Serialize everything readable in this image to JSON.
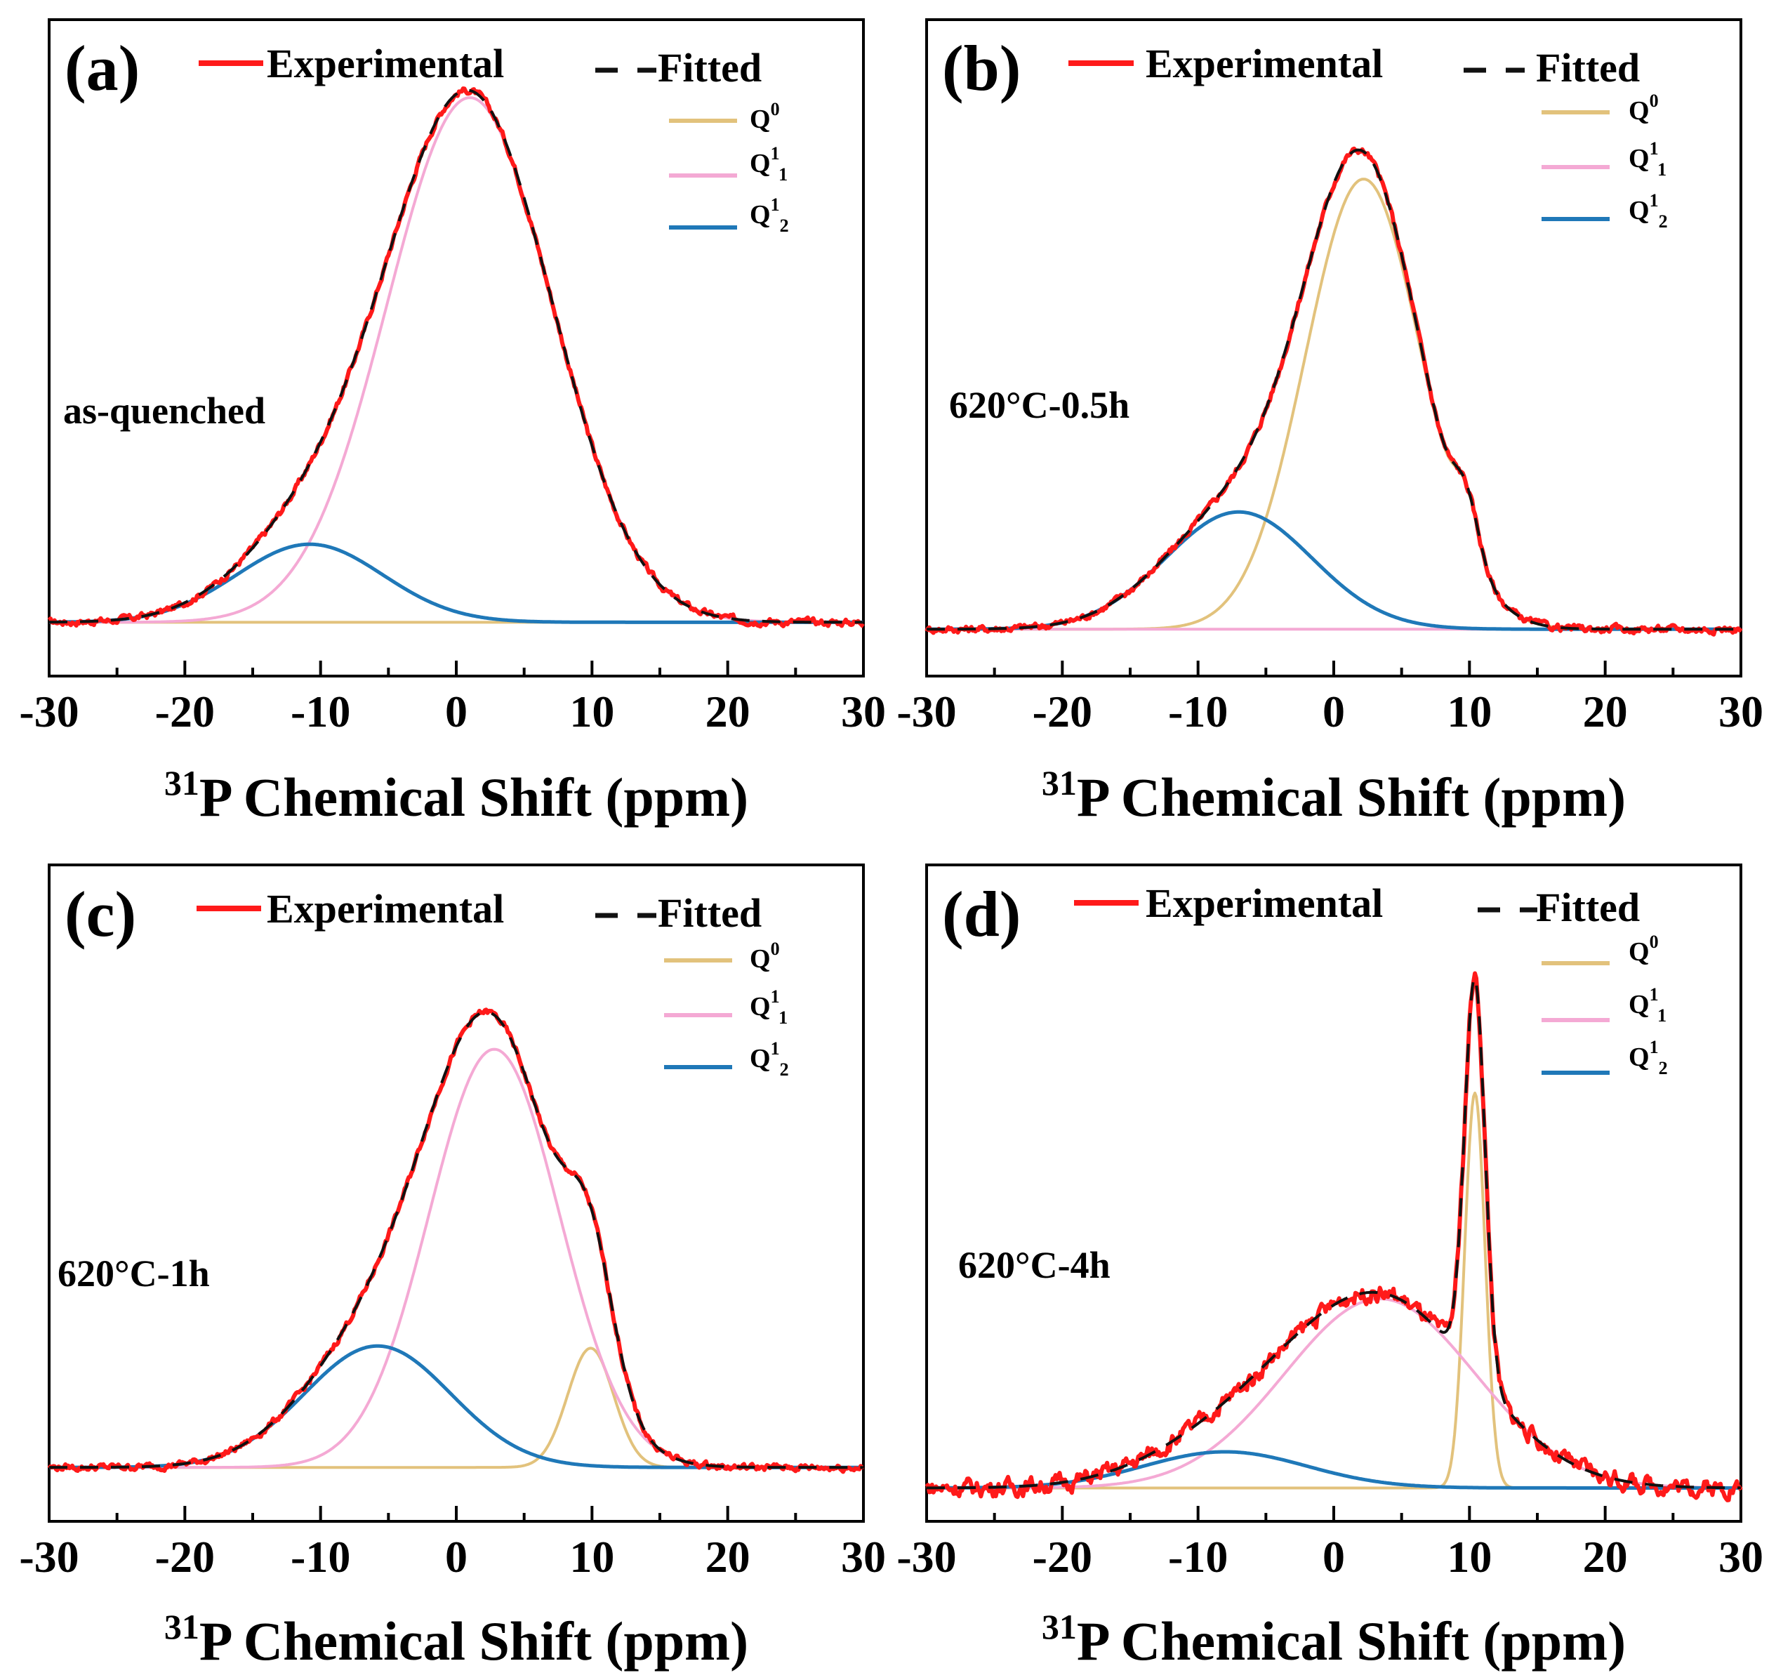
{
  "colors": {
    "experimental": "#ff1a1a",
    "fitted": "#111111",
    "q0": "#e2c27c",
    "q1_1": "#f4a9d4",
    "q1_2": "#1f78b8"
  },
  "legend": {
    "experimental": "Experimental",
    "fitted": "Fitted",
    "q0": {
      "base": "Q",
      "sup": "0",
      "sub": ""
    },
    "q1_1": {
      "base": "Q",
      "sup": "1",
      "sub": "1"
    },
    "q1_2": {
      "base": "Q",
      "sup": "1",
      "sub": "2"
    }
  },
  "xaxis": {
    "title_sup": "31",
    "title": "P Chemical Shift (ppm)",
    "ticks": [
      -30,
      -20,
      -10,
      0,
      10,
      20,
      30
    ],
    "xlim": [
      -30,
      30
    ]
  },
  "chart_data": [
    {
      "type": "line",
      "panel": "(a)",
      "annotation": "as-quenched",
      "xlim": [
        -30,
        30
      ],
      "ylim": [
        -0.1,
        1.12
      ],
      "components": {
        "q0": {
          "center": 0,
          "amp": 0,
          "sigma": 5
        },
        "q1_1": {
          "center": 1.0,
          "amp": 0.975,
          "sigma": 6.1
        },
        "q1_2": {
          "center": -10.8,
          "amp": 0.145,
          "sigma": 5.4
        }
      },
      "noise": 0.005
    },
    {
      "type": "line",
      "panel": "(b)",
      "annotation": "620°C-0.5h",
      "xlim": [
        -30,
        30
      ],
      "ylim": [
        -0.1,
        1.3
      ],
      "components": {
        "q0": [
          {
            "center": 2.2,
            "amp": 0.96,
            "sigma": 4.3
          },
          {
            "center": 9.8,
            "amp": 0.105,
            "sigma": 0.9
          }
        ],
        "q1_1": {
          "center": 0,
          "amp": 0,
          "sigma": 5
        },
        "q1_2": {
          "center": -7.0,
          "amp": 0.25,
          "sigma": 5.4
        }
      },
      "noise": 0.006
    },
    {
      "type": "line",
      "panel": "(c)",
      "annotation": "620°C-1h",
      "xlim": [
        -30,
        30
      ],
      "ylim": [
        -0.12,
        1.34
      ],
      "components": {
        "q0": {
          "center": 9.9,
          "amp": 0.265,
          "sigma": 1.7
        },
        "q1_1": {
          "center": 2.8,
          "amp": 0.93,
          "sigma": 4.8
        },
        "q1_2": {
          "center": -5.8,
          "amp": 0.27,
          "sigma": 5.4
        }
      },
      "noise": 0.006
    },
    {
      "type": "line",
      "panel": "(d)",
      "annotation": "620°C-4h",
      "xlim": [
        -30,
        30
      ],
      "ylim": [
        -0.06,
        1.12
      ],
      "components": {
        "q0": {
          "center": 10.4,
          "amp": 0.71,
          "sigma": 0.75
        },
        "q1_1": {
          "center": 3.4,
          "amp": 0.34,
          "sigma": 7.0
        },
        "q1_2": {
          "center": -8.0,
          "amp": 0.065,
          "sigma": 6.0
        }
      },
      "noise": 0.012
    }
  ]
}
